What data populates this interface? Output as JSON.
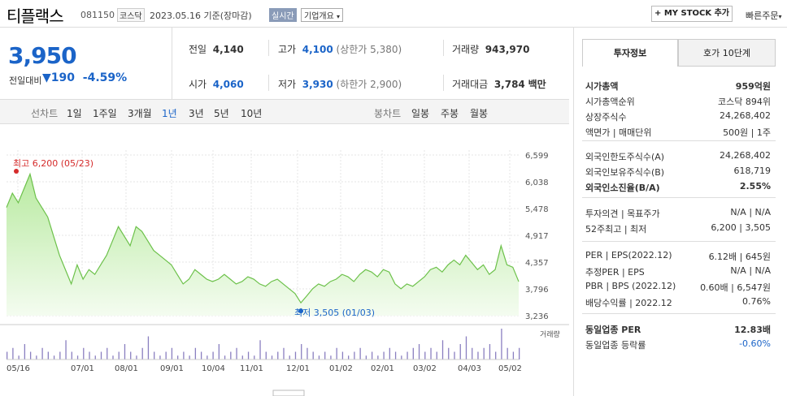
{
  "header": {
    "name": "티플랙스",
    "code": "081150",
    "market": "코스닥",
    "date_text": "2023.05.16  기준(장마감)",
    "realtime_label": "실시간",
    "company_overview": "기업개요",
    "my_stock_label": "+ MY STOCK 추가",
    "fast_order_label": "빠른주문"
  },
  "price": {
    "current": "3,950",
    "change_label": "전일대비",
    "change": "190",
    "change_pct": "-4.59%"
  },
  "summary": {
    "prev_label": "전일",
    "prev": "4,140",
    "high_label": "고가",
    "high": "4,100",
    "upper_limit": "(상한가 5,380)",
    "volume_label": "거래량",
    "volume": "943,970",
    "open_label": "시가",
    "open": "4,060",
    "low_label": "저가",
    "low": "3,930",
    "lower_limit": "(하한가 2,900)",
    "amount_label": "거래대금",
    "amount": "3,784",
    "amount_unit": "백만"
  },
  "period_tabs": {
    "line_label": "선차트",
    "items": [
      "1일",
      "1주일",
      "3개월",
      "1년",
      "3년",
      "5년",
      "10년"
    ],
    "active": "1년",
    "candle_label": "봉차트",
    "candle_items": [
      "일봉",
      "주봉",
      "월봉"
    ]
  },
  "chart_data": {
    "type": "area",
    "y_ticks": [
      "6,599",
      "6,038",
      "5,478",
      "4,917",
      "4,357",
      "3,796",
      "3,236"
    ],
    "ylim": [
      3236,
      6599
    ],
    "x_ticks": [
      "05/16",
      "07/01",
      "08/01",
      "09/01",
      "10/04",
      "11/01",
      "12/01",
      "01/02",
      "02/01",
      "03/02",
      "04/03",
      "05/02"
    ],
    "series": [
      {
        "values": [
          5500,
          5800,
          5600,
          5900,
          6200,
          5700,
          5500,
          5300,
          4900,
          4500,
          4200,
          3900,
          4300,
          4000,
          4200,
          4100,
          4300,
          4500,
          4800,
          5100,
          4900,
          4700,
          5100,
          5000,
          4800,
          4600,
          4500,
          4400,
          4300,
          4100,
          3900,
          4000,
          4200,
          4100,
          4000,
          3950,
          4000,
          4100,
          4000,
          3900,
          3950,
          4050,
          4000,
          3900,
          3850,
          3950,
          4000,
          3900,
          3800,
          3700,
          3505,
          3650,
          3800,
          3900,
          3850,
          3950,
          4000,
          4100,
          4050,
          3950,
          4100,
          4200,
          4150,
          4050,
          4200,
          4150,
          3900,
          3800,
          3900,
          3850,
          3950,
          4050,
          4200,
          4250,
          4150,
          4300,
          4400,
          4300,
          4500,
          4350,
          4200,
          4300,
          4100,
          4200,
          4700,
          4300,
          4250,
          3950
        ]
      }
    ],
    "max_label": "최고 6,200 (05/23)",
    "min_label": "최저 3,505 (01/03)",
    "volume_label": "거래량",
    "volume": [
      2,
      3,
      1,
      4,
      2,
      1,
      3,
      2,
      1,
      2,
      5,
      2,
      1,
      3,
      2,
      1,
      2,
      3,
      1,
      2,
      4,
      2,
      1,
      3,
      6,
      2,
      1,
      2,
      3,
      1,
      2,
      1,
      3,
      2,
      1,
      2,
      4,
      1,
      2,
      3,
      1,
      2,
      1,
      5,
      2,
      1,
      2,
      3,
      1,
      2,
      4,
      3,
      2,
      1,
      2,
      1,
      3,
      2,
      1,
      2,
      3,
      1,
      2,
      1,
      2,
      3,
      2,
      1,
      2,
      3,
      4,
      2,
      3,
      2,
      5,
      3,
      2,
      4,
      6,
      3,
      2,
      3,
      4,
      2,
      8,
      3,
      2,
      3
    ]
  },
  "right_panel": {
    "tab_invest": "투자정보",
    "tab_quote": "호가 10단계",
    "rows1": [
      {
        "label": "시가총액",
        "value": "959억원"
      },
      {
        "label": "시가총액순위",
        "value": "코스닥 894위"
      },
      {
        "label": "상장주식수",
        "value": "24,268,402"
      },
      {
        "label": "액면가 | 매매단위",
        "value": "500원 | 1주"
      }
    ],
    "rows2": [
      {
        "label": "외국인한도주식수(A)",
        "value": "24,268,402"
      },
      {
        "label": "외국인보유주식수(B)",
        "value": "618,719"
      },
      {
        "label": "외국인소진율(B/A)",
        "value": "2.55%"
      }
    ],
    "rows3": [
      {
        "label": "투자의견 | 목표주가",
        "value": "N/A | N/A"
      },
      {
        "label": "52주최고 | 최저",
        "value": "6,200 | 3,505"
      }
    ],
    "rows4": [
      {
        "label": "PER | EPS(2022.12)",
        "value": "6.12배 | 645원"
      },
      {
        "label": "추정PER | EPS",
        "value": "N/A | N/A"
      },
      {
        "label": "PBR | BPS (2022.12)",
        "value": "0.60배 | 6,547원"
      },
      {
        "label": "배당수익률 | 2022.12",
        "value": "0.76%"
      }
    ],
    "rows5": [
      {
        "label": "동일업종 PER",
        "value": "12.83배"
      },
      {
        "label": "동일업종 등락률",
        "value": "-0.60%"
      }
    ]
  }
}
